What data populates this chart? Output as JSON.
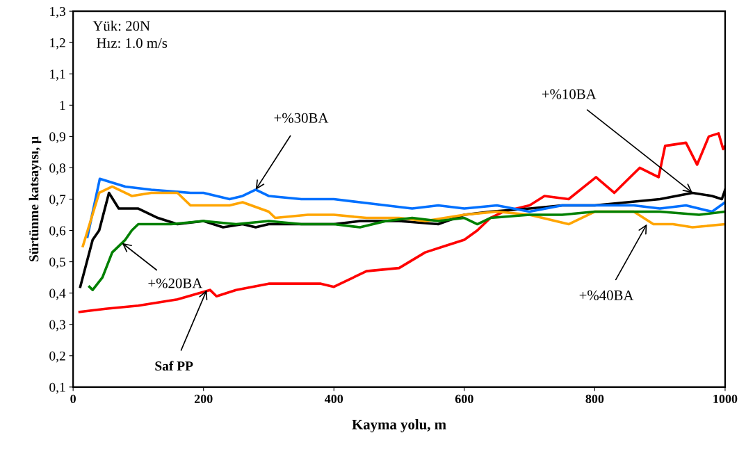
{
  "chart_data": {
    "type": "line",
    "xlabel": "Kayma yolu, m",
    "ylabel": "Sürtünme katsayısı, μ",
    "xlim": [
      0,
      1000
    ],
    "xticks": [
      0,
      200,
      400,
      600,
      800,
      1000
    ],
    "ylim": [
      0.1,
      1.3
    ],
    "yticks": [
      {
        "value": 0.1,
        "label": "0,1"
      },
      {
        "value": 0.2,
        "label": "0,2"
      },
      {
        "value": 0.3,
        "label": "0,3"
      },
      {
        "value": 0.4,
        "label": "0,4"
      },
      {
        "value": 0.5,
        "label": "0,5"
      },
      {
        "value": 0.6,
        "label": "0,6"
      },
      {
        "value": 0.7,
        "label": "0,7"
      },
      {
        "value": 0.8,
        "label": "0,8"
      },
      {
        "value": 0.9,
        "label": "0,9"
      },
      {
        "value": 1,
        "label": "1"
      },
      {
        "value": 1.1,
        "label": "1,1"
      },
      {
        "value": 1.2,
        "label": "1,2"
      },
      {
        "value": 1.3,
        "label": "1,3"
      }
    ],
    "grid": false,
    "legend": false,
    "marker": "none",
    "line_style": "solid",
    "series": [
      {
        "color": "#ff0000",
        "x": [
          10,
          50,
          100,
          160,
          210,
          220,
          250,
          300,
          350,
          380,
          400,
          420,
          450,
          500,
          540,
          570,
          600,
          620,
          640,
          660,
          700,
          723,
          760,
          802,
          830,
          869,
          898,
          908,
          940,
          957,
          975,
          990,
          997,
          1000
        ],
        "values": [
          0.34,
          0.35,
          0.36,
          0.38,
          0.41,
          0.39,
          0.41,
          0.43,
          0.43,
          0.43,
          0.42,
          0.44,
          0.47,
          0.48,
          0.53,
          0.55,
          0.57,
          0.6,
          0.64,
          0.66,
          0.68,
          0.71,
          0.7,
          0.77,
          0.72,
          0.8,
          0.77,
          0.87,
          0.88,
          0.81,
          0.9,
          0.91,
          0.86,
          0.87
        ]
      },
      {
        "color": "#000000",
        "x": [
          11,
          30,
          40,
          55,
          70,
          100,
          130,
          160,
          200,
          230,
          260,
          280,
          300,
          400,
          440,
          500,
          560,
          600,
          640,
          700,
          750,
          800,
          850,
          900,
          950,
          980,
          995,
          1000
        ],
        "values": [
          0.42,
          0.57,
          0.6,
          0.72,
          0.67,
          0.67,
          0.64,
          0.62,
          0.63,
          0.61,
          0.62,
          0.61,
          0.62,
          0.62,
          0.63,
          0.63,
          0.62,
          0.65,
          0.66,
          0.67,
          0.68,
          0.68,
          0.69,
          0.7,
          0.72,
          0.71,
          0.7,
          0.73
        ]
      },
      {
        "color": "#0070ff",
        "x": [
          22,
          41,
          80,
          120,
          180,
          200,
          240,
          260,
          280,
          300,
          350,
          400,
          440,
          480,
          520,
          560,
          600,
          650,
          700,
          750,
          800,
          860,
          900,
          940,
          980,
          1000
        ],
        "values": [
          0.58,
          0.765,
          0.74,
          0.73,
          0.72,
          0.72,
          0.7,
          0.71,
          0.73,
          0.71,
          0.7,
          0.7,
          0.69,
          0.68,
          0.67,
          0.68,
          0.67,
          0.68,
          0.66,
          0.68,
          0.68,
          0.68,
          0.67,
          0.68,
          0.66,
          0.69
        ]
      },
      {
        "color": "#ffa500",
        "x": [
          15,
          40,
          60,
          90,
          120,
          160,
          180,
          240,
          260,
          300,
          310,
          360,
          400,
          450,
          500,
          540,
          600,
          650,
          700,
          760,
          800,
          860,
          890,
          920,
          950,
          1000
        ],
        "values": [
          0.55,
          0.72,
          0.74,
          0.71,
          0.72,
          0.72,
          0.68,
          0.68,
          0.69,
          0.66,
          0.64,
          0.65,
          0.65,
          0.64,
          0.64,
          0.63,
          0.65,
          0.66,
          0.65,
          0.62,
          0.66,
          0.66,
          0.62,
          0.62,
          0.61,
          0.62
        ]
      },
      {
        "color": "#008000",
        "x": [
          25,
          30,
          45,
          60,
          80,
          90,
          100,
          150,
          200,
          250,
          300,
          350,
          400,
          440,
          480,
          520,
          560,
          600,
          620,
          640,
          700,
          750,
          800,
          860,
          900,
          960,
          1000
        ],
        "values": [
          0.42,
          0.41,
          0.45,
          0.53,
          0.57,
          0.6,
          0.62,
          0.62,
          0.63,
          0.62,
          0.63,
          0.62,
          0.62,
          0.61,
          0.63,
          0.64,
          0.63,
          0.64,
          0.62,
          0.64,
          0.65,
          0.65,
          0.66,
          0.66,
          0.66,
          0.65,
          0.66
        ]
      }
    ],
    "annotations": [
      "Yük: 20N\n Hız: 1.0 m/s",
      {
        "text": "+%30BA",
        "x": 280,
        "y": 0.73
      },
      {
        "text": "+%20BA",
        "x": 75,
        "y": 0.56
      },
      {
        "text": "Saf PP",
        "x": 205,
        "y": 0.41
      },
      {
        "text": "+%10BA",
        "x": 950,
        "y": 0.72
      },
      {
        "text": "+%40BA",
        "x": 880,
        "y": 0.62
      }
    ]
  }
}
